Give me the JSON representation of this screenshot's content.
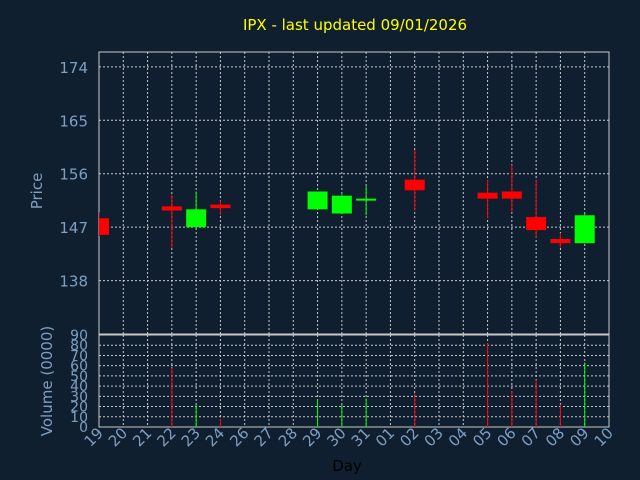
{
  "chart_data": {
    "type": "candlestick",
    "title": "IPX - last updated 09/01/2026",
    "xlabel": "Day",
    "price_panel": {
      "ylabel": "Price",
      "yticks": [
        138,
        147,
        156,
        165,
        174
      ],
      "ylim": [
        129,
        176.5
      ]
    },
    "volume_panel": {
      "ylabel": "Volume (0000)",
      "yticks": [
        0,
        10,
        20,
        30,
        40,
        50,
        60,
        70,
        80,
        90
      ],
      "ylim": [
        0,
        90
      ]
    },
    "x_tick_labels": [
      "19",
      "20",
      "21",
      "22",
      "23",
      "24",
      "26",
      "27",
      "28",
      "29",
      "30",
      "31",
      "01",
      "02",
      "03",
      "04",
      "05",
      "06",
      "07",
      "08",
      "09",
      "10"
    ],
    "candles": [
      {
        "day": "19",
        "open": 148.5,
        "high": 149.5,
        "low": 145.5,
        "close": 145.7,
        "volume": 0
      },
      {
        "day": "22",
        "open": 150.5,
        "high": 152.5,
        "low": 143.5,
        "close": 149.8,
        "volume": 58
      },
      {
        "day": "23",
        "open": 147.0,
        "high": 153.0,
        "low": 147.0,
        "close": 150.0,
        "volume": 22
      },
      {
        "day": "24",
        "open": 150.8,
        "high": 151.5,
        "low": 149.0,
        "close": 150.2,
        "volume": 8
      },
      {
        "day": "29",
        "open": 150.0,
        "high": 153.0,
        "low": 150.0,
        "close": 153.0,
        "volume": 27
      },
      {
        "day": "30",
        "open": 149.3,
        "high": 152.5,
        "low": 149.3,
        "close": 152.3,
        "volume": 22
      },
      {
        "day": "31",
        "open": 151.5,
        "high": 154.0,
        "low": 149.0,
        "close": 151.8,
        "volume": 28
      },
      {
        "day": "02",
        "open": 155.0,
        "high": 160.0,
        "low": 149.8,
        "close": 153.2,
        "volume": 33
      },
      {
        "day": "05",
        "open": 152.8,
        "high": 155.0,
        "low": 148.5,
        "close": 151.8,
        "volume": 82
      },
      {
        "day": "06",
        "open": 153.0,
        "high": 157.5,
        "low": 149.5,
        "close": 151.8,
        "volume": 35
      },
      {
        "day": "07",
        "open": 148.7,
        "high": 155.0,
        "low": 145.2,
        "close": 146.5,
        "volume": 46
      },
      {
        "day": "08",
        "open": 145.0,
        "high": 146.0,
        "low": 143.5,
        "close": 144.3,
        "volume": 22
      },
      {
        "day": "09",
        "open": 144.3,
        "high": 149.5,
        "low": 144.3,
        "close": 149.0,
        "volume": 63
      }
    ]
  },
  "colors": {
    "background": "#0f1f30",
    "grid": "#c8c8c8",
    "axis_text": "#7f9fc0",
    "title": "#ffff00",
    "xlabel": "#000000",
    "up": "#00ff00",
    "down": "#ff0000"
  }
}
